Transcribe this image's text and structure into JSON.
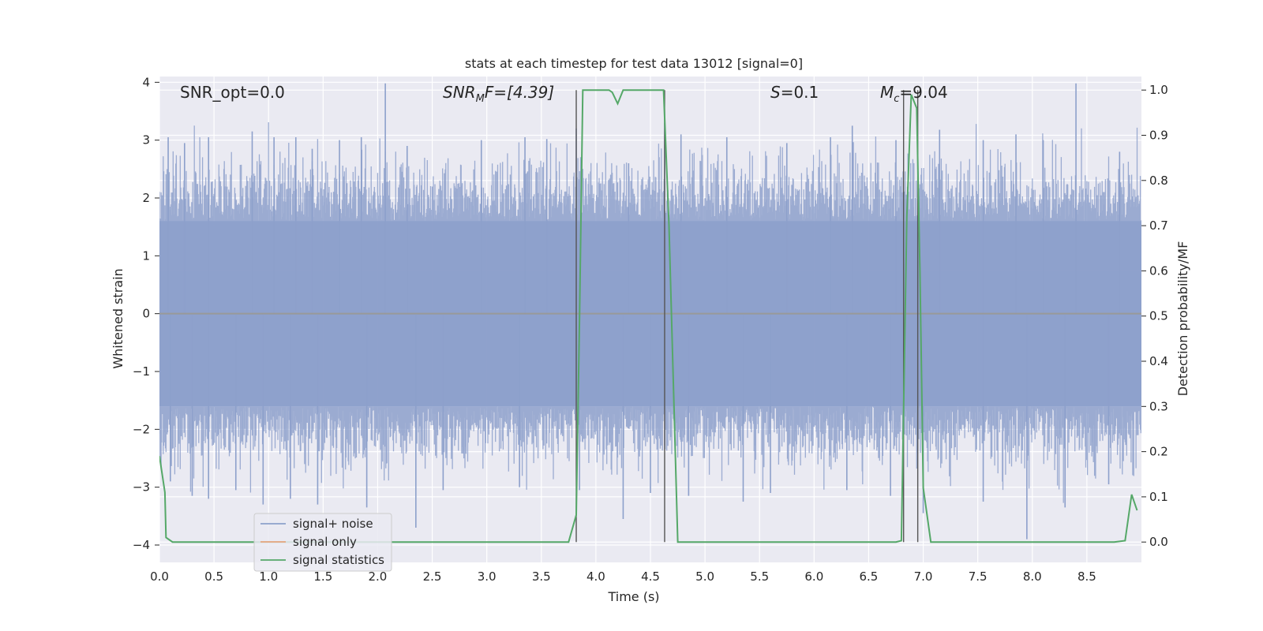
{
  "chart_data": {
    "type": "line",
    "title": "stats at each timestep for test data 13012 [signal=0]",
    "xlabel": "Time (s)",
    "ylabel": "Whitened strain",
    "ylabel_right": "Detection probability/MF",
    "xlim": [
      0.0,
      9.0
    ],
    "ylim": [
      -4.3,
      4.1
    ],
    "ylim_right": [
      -0.045,
      1.03
    ],
    "xticks": [
      "0.0",
      "0.5",
      "1.0",
      "1.5",
      "2.0",
      "2.5",
      "3.0",
      "3.5",
      "4.0",
      "4.5",
      "5.0",
      "5.5",
      "6.0",
      "6.5",
      "7.0",
      "7.5",
      "8.0",
      "8.5"
    ],
    "yticks": [
      "4",
      "3",
      "2",
      "1",
      "0",
      "−1",
      "−2",
      "−3",
      "−4"
    ],
    "yticks_right": [
      "1.0",
      "0.9",
      "0.8",
      "0.7",
      "0.6",
      "0.5",
      "0.4",
      "0.3",
      "0.2",
      "0.1",
      "0.0"
    ],
    "grid": true,
    "legend_position": "bottom-left",
    "annotations": {
      "snr_opt": "SNR_opt=0.0",
      "snr_mf_sym": "SNR",
      "snr_mf_sub": "M",
      "snr_mf_rest": "F=[4.39]",
      "s_sym": "S",
      "s_rest": "=0.1",
      "mc_sym": "M",
      "mc_sub": "c",
      "mc_rest": "=9.04"
    },
    "series": [
      {
        "name": "signal+ noise",
        "color": "#8da0cb",
        "description_level": "noise",
        "typical_envelope": [
          -1.6,
          1.6
        ],
        "peak_range": [
          -3.9,
          4.0
        ],
        "spikes": [
          [
            0.08,
            3.05
          ],
          [
            0.23,
            2.95
          ],
          [
            0.45,
            3.05
          ],
          [
            0.85,
            3.15
          ],
          [
            1.05,
            3.05
          ],
          [
            1.25,
            3.05
          ],
          [
            1.4,
            2.85
          ],
          [
            1.65,
            3.0
          ],
          [
            1.85,
            3.05
          ],
          [
            2.07,
            3.98
          ],
          [
            2.27,
            2.9
          ],
          [
            2.95,
            3.0
          ],
          [
            3.35,
            3.05
          ],
          [
            3.55,
            3.02
          ],
          [
            3.82,
            3.2
          ],
          [
            4.3,
            2.6
          ],
          [
            4.63,
            3.3
          ],
          [
            4.78,
            3.1
          ],
          [
            5.2,
            3.05
          ],
          [
            5.75,
            2.95
          ],
          [
            6.15,
            3.05
          ],
          [
            6.35,
            3.25
          ],
          [
            6.75,
            3.0
          ],
          [
            7.15,
            3.18
          ],
          [
            7.55,
            3.0
          ],
          [
            7.85,
            3.1
          ],
          [
            8.1,
            3.0
          ],
          [
            8.4,
            3.98
          ],
          [
            8.8,
            2.8
          ],
          [
            0.1,
            -2.9
          ],
          [
            0.3,
            -3.15
          ],
          [
            0.45,
            -3.2
          ],
          [
            0.7,
            -3.05
          ],
          [
            0.95,
            -3.3
          ],
          [
            1.2,
            -3.2
          ],
          [
            1.45,
            -3.3
          ],
          [
            1.9,
            -3.35
          ],
          [
            2.35,
            -3.7
          ],
          [
            2.6,
            -3.05
          ],
          [
            3.3,
            -3.0
          ],
          [
            3.85,
            -3.05
          ],
          [
            4.25,
            -3.55
          ],
          [
            4.5,
            -3.1
          ],
          [
            4.85,
            -3.15
          ],
          [
            5.35,
            -3.25
          ],
          [
            5.6,
            -3.1
          ],
          [
            6.3,
            -3.05
          ],
          [
            6.7,
            -3.15
          ],
          [
            7.0,
            -3.45
          ],
          [
            7.55,
            -3.25
          ],
          [
            7.95,
            -3.9
          ],
          [
            8.3,
            -3.35
          ],
          [
            8.7,
            -2.95
          ]
        ]
      },
      {
        "name": "signal only",
        "color": "#e5a47d",
        "values_const": 0.0
      },
      {
        "name": "signal statistics",
        "color": "#55a868",
        "axis": "right",
        "points": [
          [
            0.0,
            0.19
          ],
          [
            0.05,
            0.11
          ],
          [
            0.06,
            0.01
          ],
          [
            0.12,
            0.0
          ],
          [
            3.75,
            0.0
          ],
          [
            3.82,
            0.06
          ],
          [
            3.85,
            0.5
          ],
          [
            3.88,
            1.0
          ],
          [
            4.12,
            1.0
          ],
          [
            4.15,
            0.995
          ],
          [
            4.2,
            0.97
          ],
          [
            4.25,
            1.0
          ],
          [
            4.62,
            1.0
          ],
          [
            4.67,
            0.7
          ],
          [
            4.75,
            0.0
          ],
          [
            6.75,
            0.0
          ],
          [
            6.8,
            0.003
          ],
          [
            6.85,
            0.72
          ],
          [
            6.89,
            0.99
          ],
          [
            6.94,
            0.96
          ],
          [
            6.97,
            0.6
          ],
          [
            7.0,
            0.12
          ],
          [
            7.07,
            0.0
          ],
          [
            8.75,
            0.0
          ],
          [
            8.85,
            0.003
          ],
          [
            8.91,
            0.105
          ],
          [
            8.96,
            0.07
          ]
        ]
      }
    ],
    "vlines": [
      3.82,
      4.63,
      6.82,
      6.95
    ]
  }
}
